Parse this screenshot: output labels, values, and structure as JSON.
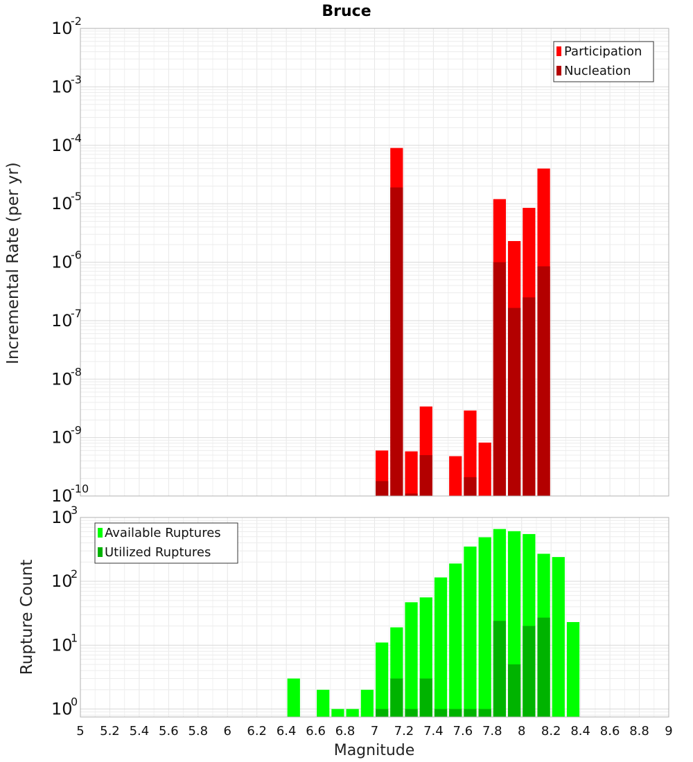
{
  "chart_data": [
    {
      "type": "bar",
      "title": "Bruce",
      "xlabel": "Magnitude",
      "ylabel": "Incremental Rate (per yr)",
      "yscale": "log",
      "ylim": [
        1e-10,
        0.01
      ],
      "xlim": [
        5,
        9
      ],
      "ytick_exponents": [
        "-10",
        "-9",
        "-8",
        "-7",
        "-6",
        "-5",
        "-4",
        "-3",
        "-2"
      ],
      "legend_position": "top-right",
      "series": [
        {
          "name": "Participation",
          "color": "#ff0000",
          "x": [
            7.05,
            7.15,
            7.25,
            7.35,
            7.55,
            7.65,
            7.75,
            7.85,
            7.95,
            8.05,
            8.15
          ],
          "values": [
            6e-10,
            9e-05,
            5.8e-10,
            3.4e-09,
            4.8e-10,
            2.9e-09,
            8.2e-10,
            1.2e-05,
            2.3e-06,
            8.5e-06,
            4e-05
          ]
        },
        {
          "name": "Nucleation",
          "color": "#b30000",
          "x": [
            7.05,
            7.15,
            7.25,
            7.35,
            7.65,
            7.85,
            7.95,
            8.05,
            8.15
          ],
          "values": [
            1.8e-10,
            1.9e-05,
            1.1e-10,
            5e-10,
            2.1e-10,
            1e-06,
            1.65e-07,
            2.5e-07,
            8.5e-07
          ]
        }
      ]
    },
    {
      "type": "bar",
      "xlabel": "Magnitude",
      "ylabel": "Rupture Count",
      "yscale": "log",
      "ylim": [
        0.75,
        1000
      ],
      "xlim": [
        5,
        9
      ],
      "ytick_exponents": [
        "0",
        "1",
        "2",
        "3"
      ],
      "xticks": [
        "5",
        "5.2",
        "5.4",
        "5.6",
        "5.8",
        "6",
        "6.2",
        "6.4",
        "6.6",
        "6.8",
        "7",
        "7.2",
        "7.4",
        "7.6",
        "7.8",
        "8",
        "8.2",
        "8.4",
        "8.6",
        "8.8",
        "9"
      ],
      "legend_position": "top-left",
      "series": [
        {
          "name": "Available Ruptures",
          "color": "#00ff00",
          "x": [
            6.45,
            6.65,
            6.75,
            6.85,
            6.95,
            7.05,
            7.15,
            7.25,
            7.35,
            7.45,
            7.55,
            7.65,
            7.75,
            7.85,
            7.95,
            8.05,
            8.15,
            8.25,
            8.35
          ],
          "values": [
            3,
            2,
            1,
            1,
            2,
            11,
            19,
            47,
            56,
            115,
            190,
            350,
            490,
            660,
            610,
            550,
            270,
            240,
            23
          ]
        },
        {
          "name": "Utilized Ruptures",
          "color": "#00b300",
          "x": [
            7.05,
            7.15,
            7.25,
            7.35,
            7.45,
            7.55,
            7.65,
            7.75,
            7.85,
            7.95,
            8.05,
            8.15
          ],
          "values": [
            1,
            3,
            1,
            3,
            1,
            1,
            1,
            1,
            24,
            5,
            20,
            27
          ]
        }
      ]
    }
  ]
}
